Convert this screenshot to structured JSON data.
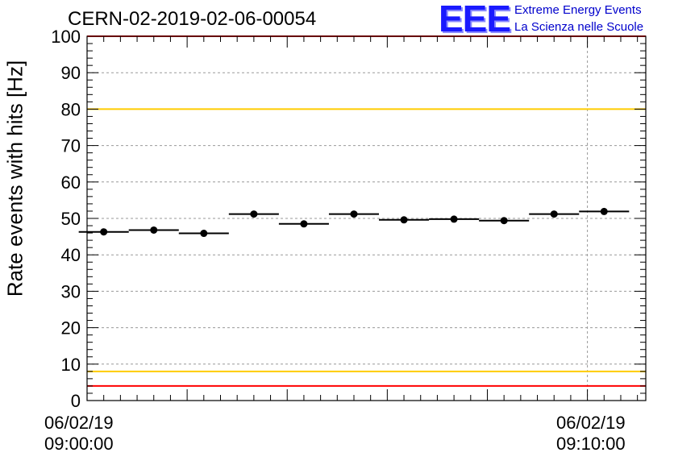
{
  "chart_data": {
    "type": "scatter",
    "title": "CERN-02-2019-02-06-00054",
    "ylabel": "Rate events with hits [Hz]",
    "xlabel": "",
    "ylim": [
      0,
      100
    ],
    "yticks": [
      "0",
      "10",
      "20",
      "30",
      "40",
      "50",
      "60",
      "70",
      "80",
      "90",
      "100"
    ],
    "xlim": [
      "09:00:00",
      "09:11:10"
    ],
    "xtick_labels": [
      {
        "x": "09:00:00",
        "date": "06/02/19",
        "time": "09:00:00"
      },
      {
        "x": "09:10:00",
        "date": "06/02/19",
        "time": "09:10:00"
      }
    ],
    "grid": true,
    "reference_lines": [
      {
        "y": 100,
        "color": "#ff0000"
      },
      {
        "y": 80,
        "color": "#ffcc00"
      },
      {
        "y": 8,
        "color": "#ffcc00"
      },
      {
        "y": 4,
        "color": "#ff0000"
      }
    ],
    "series": [
      {
        "x": [
          "09:00:20",
          "09:01:20",
          "09:02:20",
          "09:03:20",
          "09:04:20",
          "09:05:20",
          "09:06:20",
          "09:07:20",
          "09:08:20",
          "09:09:20",
          "09:10:20"
        ],
        "y": [
          46.3,
          46.8,
          45.9,
          51.2,
          48.5,
          51.2,
          49.6,
          49.8,
          49.4,
          51.2,
          51.9
        ],
        "color": "#000000"
      }
    ]
  },
  "logo": {
    "letters": "EEE",
    "line1": "Extreme Energy Events",
    "line2": "La Scienza nelle Scuole",
    "color": "#0000cc"
  }
}
